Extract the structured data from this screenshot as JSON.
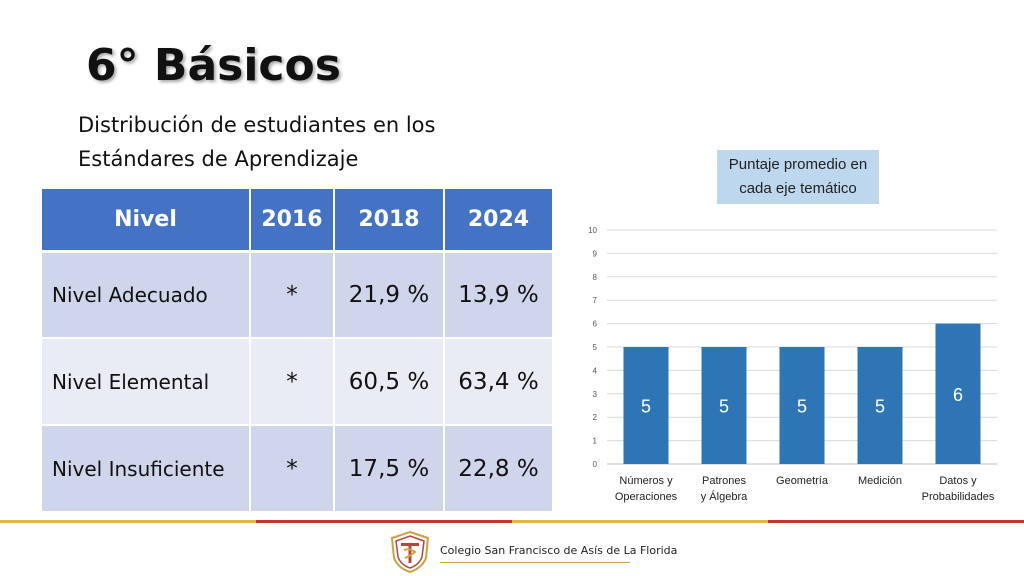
{
  "title": "6° Básicos",
  "subtitle": "Distribución de estudiantes en los Estándares de Aprendizaje",
  "table": {
    "headers": [
      "Nivel",
      "2016",
      "2018",
      "2024"
    ],
    "rows": [
      {
        "level": "Nivel Adecuado",
        "y2016": "*",
        "y2018": "21,9 %",
        "y2024": "13,9 %"
      },
      {
        "level": "Nivel Elemental",
        "y2016": "*",
        "y2018": "60,5 %",
        "y2024": "63,4 %"
      },
      {
        "level": "Nivel Insuficiente",
        "y2016": "*",
        "y2018": "17,5 %",
        "y2024": "22,8 %"
      }
    ]
  },
  "chart_data": {
    "type": "bar",
    "title": "Puntaje promedio en cada eje temático",
    "categories": [
      [
        "Números y",
        "Operaciones"
      ],
      [
        "Patrones",
        "y Álgebra"
      ],
      [
        "Geometría"
      ],
      [
        "Medición"
      ],
      [
        "Datos y",
        "Probabilidades"
      ]
    ],
    "values": [
      5,
      5,
      5,
      5,
      6
    ],
    "ylim": [
      0,
      10
    ],
    "yticks": [
      0,
      1,
      2,
      3,
      4,
      5,
      6,
      7,
      8,
      9,
      10
    ],
    "grid": true,
    "bar_color": "#2e75b6"
  },
  "footer": {
    "school": "Colegio San Francisco de Asís de La Florida",
    "colors": {
      "gold": "#e6b34a",
      "red": "#c0392b"
    }
  }
}
